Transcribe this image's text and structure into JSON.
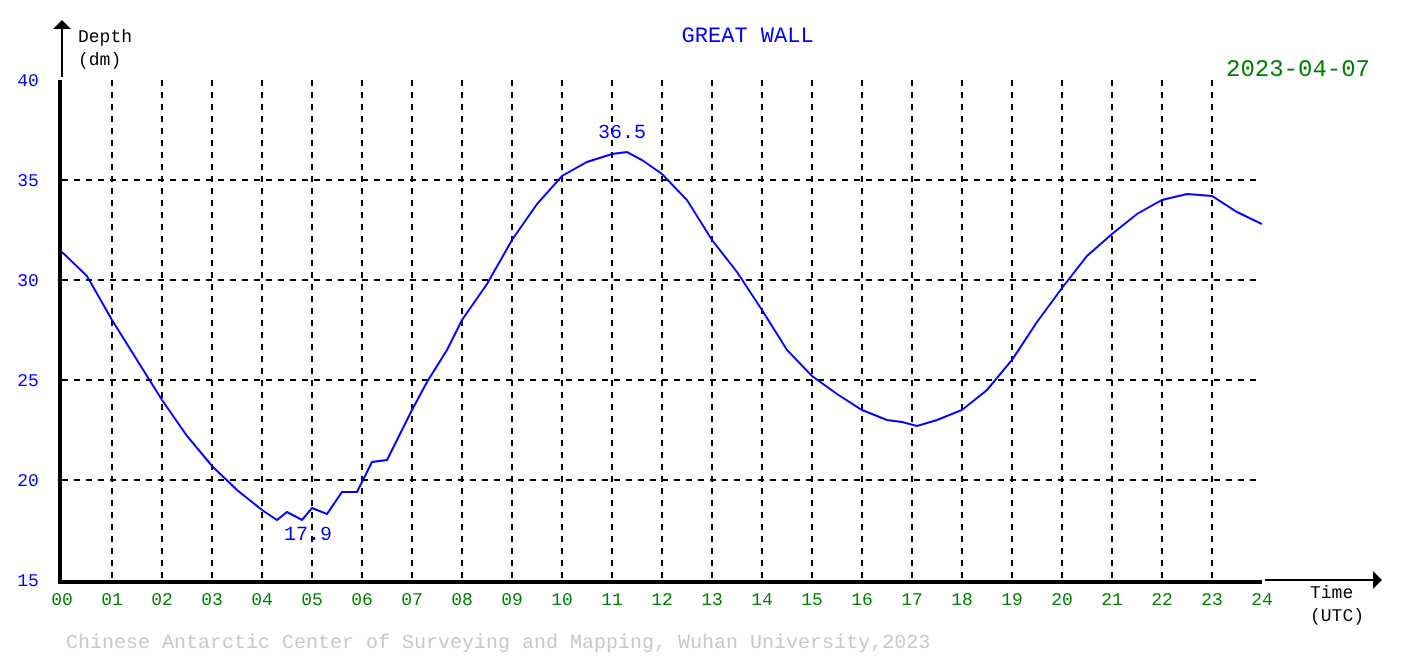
{
  "chart_data": {
    "type": "line",
    "title": "GREAT WALL",
    "subtitle": "2023-04-07",
    "xlabel": "Time\n(UTC)",
    "ylabel": "Depth\n(dm)",
    "x": [
      0,
      0.5,
      1,
      1.5,
      2,
      2.5,
      3,
      3.5,
      4,
      4.3,
      4.5,
      4.8,
      5,
      5.3,
      5.6,
      5.9,
      6.2,
      6.5,
      7,
      7.3,
      7.7,
      8,
      8.5,
      9,
      9.5,
      10,
      10.5,
      11,
      11.3,
      11.6,
      12,
      12.5,
      13,
      13.5,
      14,
      14.5,
      15,
      15.5,
      16,
      16.5,
      16.8,
      17.1,
      17.5,
      18,
      18.5,
      19,
      19.5,
      20,
      20.5,
      21,
      21.5,
      22,
      22.5,
      23,
      23.5,
      24
    ],
    "series": [
      {
        "color": "#0000ff",
        "values": [
          31.4,
          30.2,
          28.0,
          26.0,
          24.0,
          22.2,
          20.7,
          19.5,
          18.5,
          18.0,
          18.4,
          18.0,
          18.6,
          18.3,
          19.4,
          19.4,
          20.9,
          21.0,
          23.5,
          24.9,
          26.5,
          28.0,
          29.8,
          32.0,
          33.8,
          35.2,
          35.9,
          36.3,
          36.4,
          36.0,
          35.3,
          34.0,
          32.0,
          30.4,
          28.5,
          26.5,
          25.2,
          24.3,
          23.5,
          23.0,
          22.9,
          22.7,
          23.0,
          23.5,
          24.5,
          26.0,
          27.9,
          29.6,
          31.2,
          32.3,
          33.3,
          34.0,
          34.3,
          34.2,
          33.4,
          32.8
        ]
      }
    ],
    "xlim": [
      0,
      24
    ],
    "xticks": [
      {
        "value": 0,
        "label": "00"
      },
      {
        "value": 1,
        "label": "01"
      },
      {
        "value": 2,
        "label": "02"
      },
      {
        "value": 3,
        "label": "03"
      },
      {
        "value": 4,
        "label": "04"
      },
      {
        "value": 5,
        "label": "05"
      },
      {
        "value": 6,
        "label": "06"
      },
      {
        "value": 7,
        "label": "07"
      },
      {
        "value": 8,
        "label": "08"
      },
      {
        "value": 9,
        "label": "09"
      },
      10,
      11,
      12,
      13,
      14,
      15,
      16,
      17,
      18,
      19,
      20,
      21,
      22,
      23,
      24
    ],
    "ylim": [
      15,
      40
    ],
    "yticks": [
      15,
      20,
      25,
      30,
      35,
      40
    ],
    "grid": true,
    "marker": "none",
    "line_style": "solid",
    "annotations": [
      {
        "text": "36.5",
        "x": 11.2,
        "y": 36.5
      },
      {
        "text": "17.9",
        "x": 4.9,
        "y": 17.9
      },
      "Chinese Antarctic Center of Surveying and Mapping, Wuhan University,2023"
    ]
  }
}
